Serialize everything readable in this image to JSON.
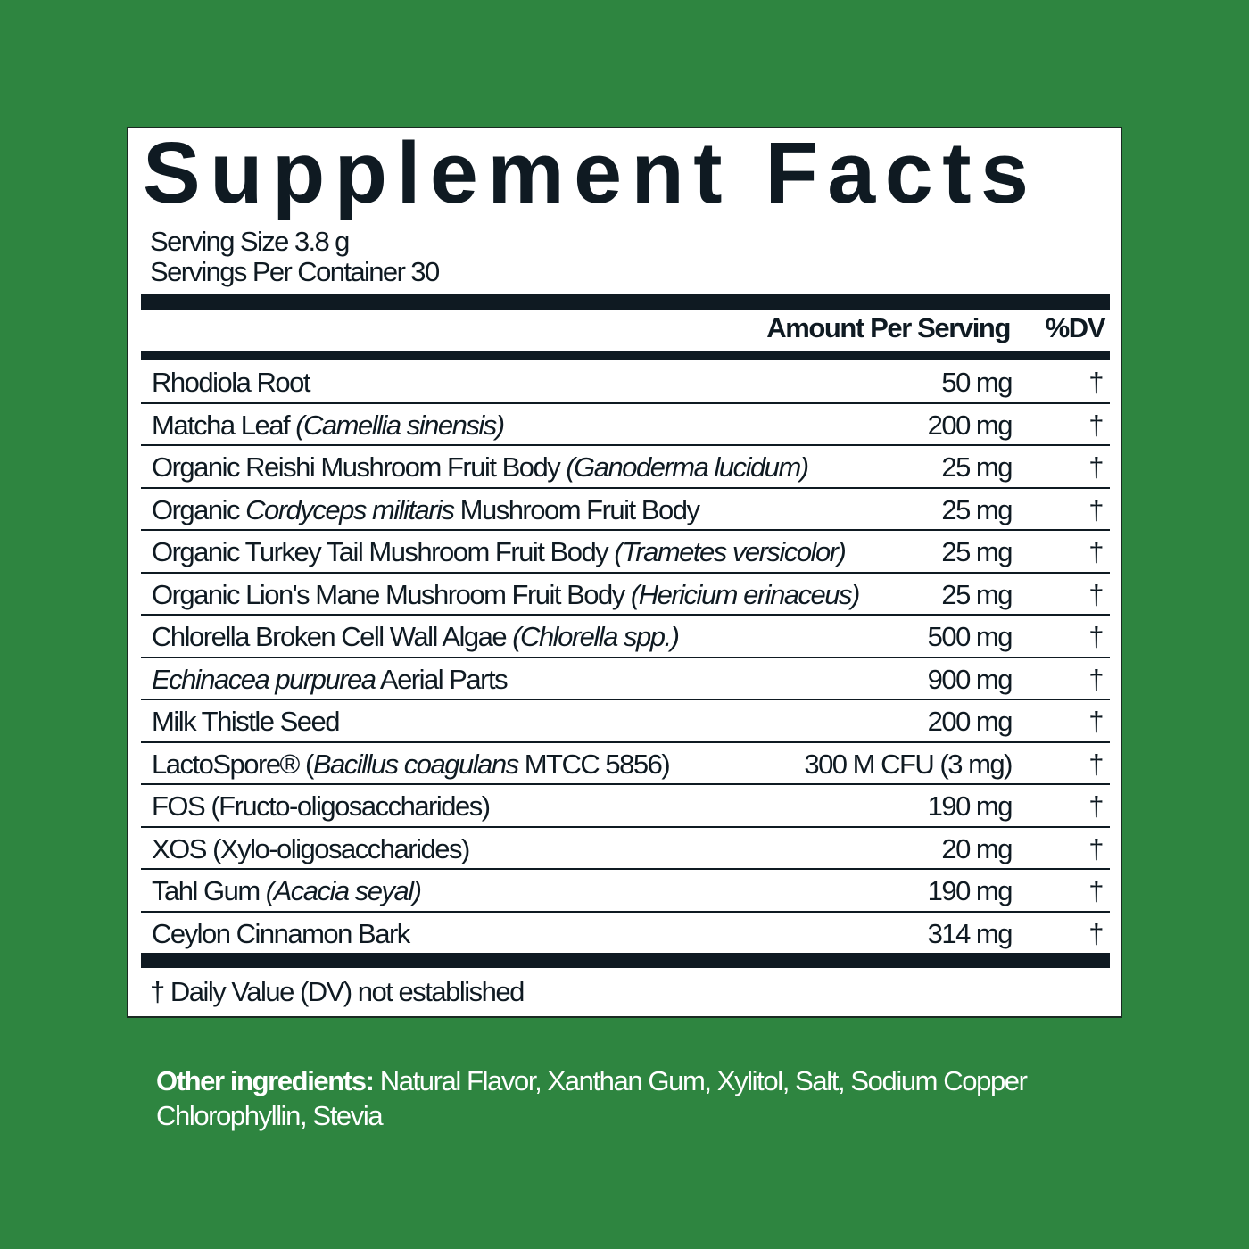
{
  "title": "Supplement Facts",
  "serving_size": "Serving Size 3.8 g",
  "servings_per_container": "Servings Per Container 30",
  "header": {
    "amount": "Amount Per Serving",
    "dv": "%DV"
  },
  "rows": [
    {
      "parts": [
        {
          "text": "Rhodiola Root",
          "italic": false
        }
      ],
      "amount": "50 mg",
      "dv": "†"
    },
    {
      "parts": [
        {
          "text": "Matcha Leaf ",
          "italic": false
        },
        {
          "text": "(Camellia sinensis)",
          "italic": true
        }
      ],
      "amount": "200 mg",
      "dv": "†"
    },
    {
      "parts": [
        {
          "text": "Organic Reishi Mushroom Fruit Body ",
          "italic": false
        },
        {
          "text": "(Ganoderma lucidum)",
          "italic": true
        }
      ],
      "amount": "25 mg",
      "dv": "†"
    },
    {
      "parts": [
        {
          "text": "Organic ",
          "italic": false
        },
        {
          "text": "Cordyceps militaris",
          "italic": true
        },
        {
          "text": " Mushroom Fruit Body",
          "italic": false
        }
      ],
      "amount": "25 mg",
      "dv": "†"
    },
    {
      "parts": [
        {
          "text": "Organic Turkey Tail Mushroom Fruit Body ",
          "italic": false
        },
        {
          "text": "(Trametes versicolor)",
          "italic": true
        }
      ],
      "amount": "25 mg",
      "dv": "†"
    },
    {
      "parts": [
        {
          "text": "Organic Lion's Mane Mushroom Fruit Body ",
          "italic": false
        },
        {
          "text": "(Hericium erinaceus)",
          "italic": true
        }
      ],
      "amount": "25 mg",
      "dv": "†"
    },
    {
      "parts": [
        {
          "text": "Chlorella Broken Cell Wall Algae ",
          "italic": false
        },
        {
          "text": "(Chlorella spp.)",
          "italic": true
        }
      ],
      "amount": "500 mg",
      "dv": "†"
    },
    {
      "parts": [
        {
          "text": "Echinacea purpurea",
          "italic": true
        },
        {
          "text": " Aerial Parts",
          "italic": false
        }
      ],
      "amount": "900 mg",
      "dv": "†"
    },
    {
      "parts": [
        {
          "text": "Milk Thistle Seed",
          "italic": false
        }
      ],
      "amount": "200 mg",
      "dv": "†"
    },
    {
      "parts": [
        {
          "text": "LactoSpore® (",
          "italic": false
        },
        {
          "text": "Bacillus coagulans",
          "italic": true
        },
        {
          "text": " MTCC 5856)",
          "italic": false
        }
      ],
      "amount": "300 M CFU (3 mg)",
      "dv": "†"
    },
    {
      "parts": [
        {
          "text": "FOS (Fructo-oligosaccharides)",
          "italic": false
        }
      ],
      "amount": "190 mg",
      "dv": "†"
    },
    {
      "parts": [
        {
          "text": "XOS (Xylo-oligosaccharides)",
          "italic": false
        }
      ],
      "amount": "20 mg",
      "dv": "†"
    },
    {
      "parts": [
        {
          "text": "Tahl Gum ",
          "italic": false
        },
        {
          "text": "(Acacia seyal)",
          "italic": true
        }
      ],
      "amount": "190 mg",
      "dv": "†"
    },
    {
      "parts": [
        {
          "text": "Ceylon Cinnamon Bark",
          "italic": false
        }
      ],
      "amount": "314 mg",
      "dv": "†"
    }
  ],
  "footnote": "† Daily Value (DV) not established",
  "other_ingredients": {
    "label": "Other ingredients:",
    "text": " Natural Flavor, Xanthan Gum, Xylitol, Salt, Sodium Copper Chlorophyllin, Stevia"
  },
  "colors": {
    "background": "#2e8540",
    "ink": "#0f1a22",
    "panel": "#ffffff"
  }
}
